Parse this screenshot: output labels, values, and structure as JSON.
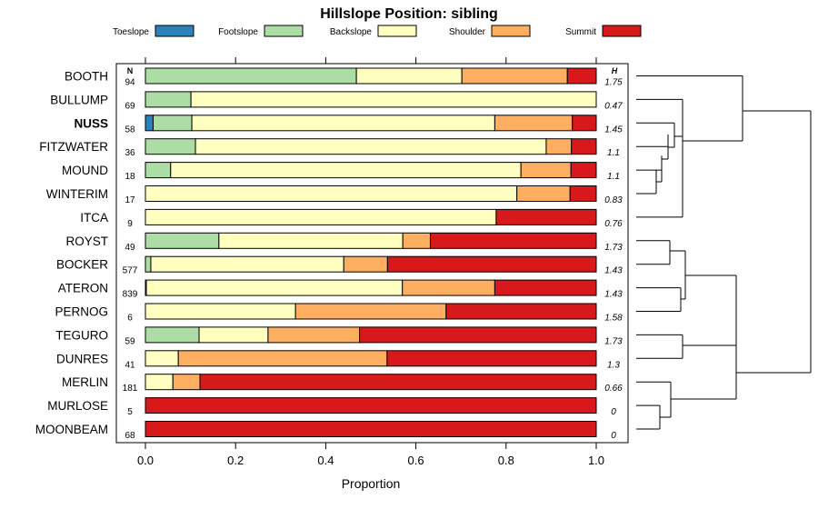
{
  "chart_data": {
    "type": "bar",
    "orientation": "horizontal-stacked-proportion",
    "title": "Hillslope Position: sibling",
    "xlabel": "Proportion",
    "xlim": [
      0,
      1
    ],
    "x_ticks": [
      "0.0",
      "0.2",
      "0.4",
      "0.6",
      "0.8",
      "1.0"
    ],
    "n_header": "N",
    "h_header": "H",
    "legend_position": "top",
    "highlighted_category": "NUSS",
    "series": [
      {
        "name": "Toeslope",
        "color": "#2b83ba"
      },
      {
        "name": "Footslope",
        "color": "#abdda4"
      },
      {
        "name": "Backslope",
        "color": "#ffffbf"
      },
      {
        "name": "Shoulder",
        "color": "#fdae61"
      },
      {
        "name": "Summit",
        "color": "#d7191c"
      }
    ],
    "rows": [
      {
        "label": "BOOTH",
        "n": "94",
        "h": "1.75",
        "values": [
          0,
          0.468,
          0.234,
          0.234,
          0.064
        ]
      },
      {
        "label": "BULLUMP",
        "n": "69",
        "h": "0.47",
        "values": [
          0,
          0.101,
          0.899,
          0,
          0
        ]
      },
      {
        "label": "NUSS",
        "n": "58",
        "h": "1.45",
        "values": [
          0.017,
          0.086,
          0.672,
          0.172,
          0.053
        ]
      },
      {
        "label": "FITZWATER",
        "n": "36",
        "h": "1.1",
        "values": [
          0,
          0.111,
          0.778,
          0.056,
          0.055
        ]
      },
      {
        "label": "MOUND",
        "n": "18",
        "h": "1.1",
        "values": [
          0,
          0.056,
          0.777,
          0.111,
          0.056
        ]
      },
      {
        "label": "WINTERIM",
        "n": "17",
        "h": "0.83",
        "values": [
          0,
          0,
          0.824,
          0.118,
          0.058
        ]
      },
      {
        "label": "ITCA",
        "n": "9",
        "h": "0.76",
        "values": [
          0,
          0,
          0.778,
          0,
          0.222
        ]
      },
      {
        "label": "ROYST",
        "n": "49",
        "h": "1.73",
        "values": [
          0,
          0.163,
          0.408,
          0.061,
          0.368
        ]
      },
      {
        "label": "BOCKER",
        "n": "577",
        "h": "1.43",
        "values": [
          0,
          0.012,
          0.428,
          0.097,
          0.463
        ]
      },
      {
        "label": "ATERON",
        "n": "839",
        "h": "1.43",
        "values": [
          0,
          0.002,
          0.568,
          0.205,
          0.225
        ]
      },
      {
        "label": "PERNOG",
        "n": "6",
        "h": "1.58",
        "values": [
          0,
          0,
          0.333,
          0.334,
          0.333
        ]
      },
      {
        "label": "TEGURO",
        "n": "59",
        "h": "1.73",
        "values": [
          0,
          0.119,
          0.153,
          0.203,
          0.525
        ]
      },
      {
        "label": "DUNRES",
        "n": "41",
        "h": "1.3",
        "values": [
          0,
          0,
          0.073,
          0.463,
          0.464
        ]
      },
      {
        "label": "MERLIN",
        "n": "181",
        "h": "0.66",
        "values": [
          0,
          0,
          0.061,
          0.06,
          0.879
        ]
      },
      {
        "label": "MURLOSE",
        "n": "5",
        "h": "0",
        "values": [
          0,
          0,
          0,
          0,
          1
        ]
      },
      {
        "label": "MOONBEAM",
        "n": "68",
        "h": "0",
        "values": [
          0,
          0,
          0,
          0,
          1
        ]
      }
    ]
  }
}
